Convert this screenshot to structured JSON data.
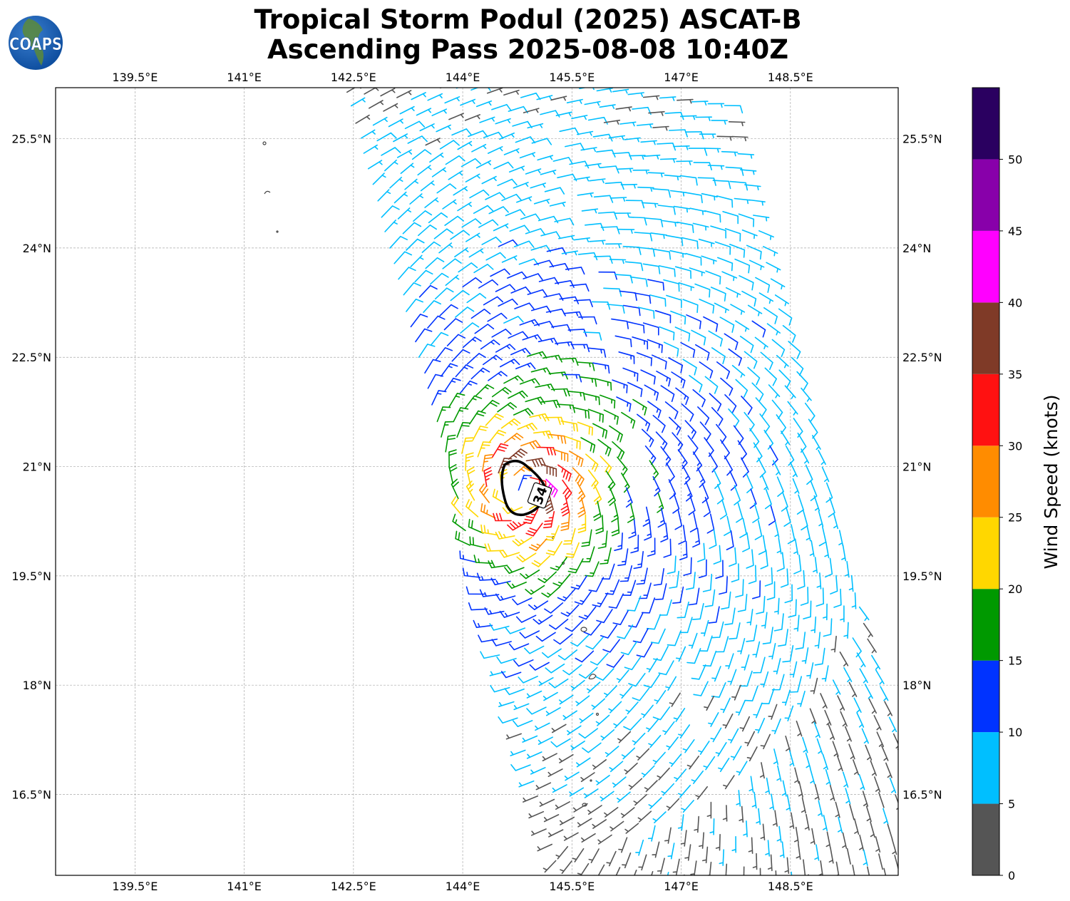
{
  "header": {
    "title_line1": "Tropical Storm Podul (2025) ASCAT-B",
    "title_line2": "Ascending Pass 2025-08-08 10:40Z",
    "logo_text": "COAPS"
  },
  "map": {
    "lon_ticks": [
      "139.5°E",
      "141°E",
      "142.5°E",
      "144°E",
      "145.5°E",
      "147°E",
      "148.5°E"
    ],
    "lat_ticks": [
      "25.5°N",
      "24°N",
      "22.5°N",
      "21°N",
      "19.5°N",
      "18°N",
      "16.5°N"
    ],
    "lon_values": [
      139.5,
      141,
      142.5,
      144,
      145.5,
      147,
      148.5
    ],
    "lat_values": [
      25.5,
      24,
      22.5,
      21,
      19.5,
      18,
      16.5
    ],
    "lon_range": [
      138.41,
      149.98
    ],
    "lat_range": [
      15.39,
      26.2
    ],
    "contour_label": "34",
    "storm_center": {
      "lon": 144.8,
      "lat": 20.65
    }
  },
  "colorbar": {
    "label": "Wind Speed (knots)",
    "ticks": [
      "0",
      "5",
      "10",
      "15",
      "20",
      "25",
      "30",
      "35",
      "40",
      "45",
      "50"
    ],
    "range": [
      0,
      55
    ],
    "bins": [
      {
        "from": 0,
        "to": 5,
        "color": "#555555"
      },
      {
        "from": 5,
        "to": 10,
        "color": "#00bfff"
      },
      {
        "from": 10,
        "to": 15,
        "color": "#0033ff"
      },
      {
        "from": 15,
        "to": 20,
        "color": "#009900"
      },
      {
        "from": 20,
        "to": 25,
        "color": "#ffd700"
      },
      {
        "from": 25,
        "to": 30,
        "color": "#ff8c00"
      },
      {
        "from": 30,
        "to": 35,
        "color": "#ff1111"
      },
      {
        "from": 35,
        "to": 40,
        "color": "#7f3a27"
      },
      {
        "from": 40,
        "to": 45,
        "color": "#ff00ff"
      },
      {
        "from": 45,
        "to": 50,
        "color": "#8800aa"
      },
      {
        "from": 50,
        "to": 55,
        "color": "#2a0060"
      }
    ]
  }
}
